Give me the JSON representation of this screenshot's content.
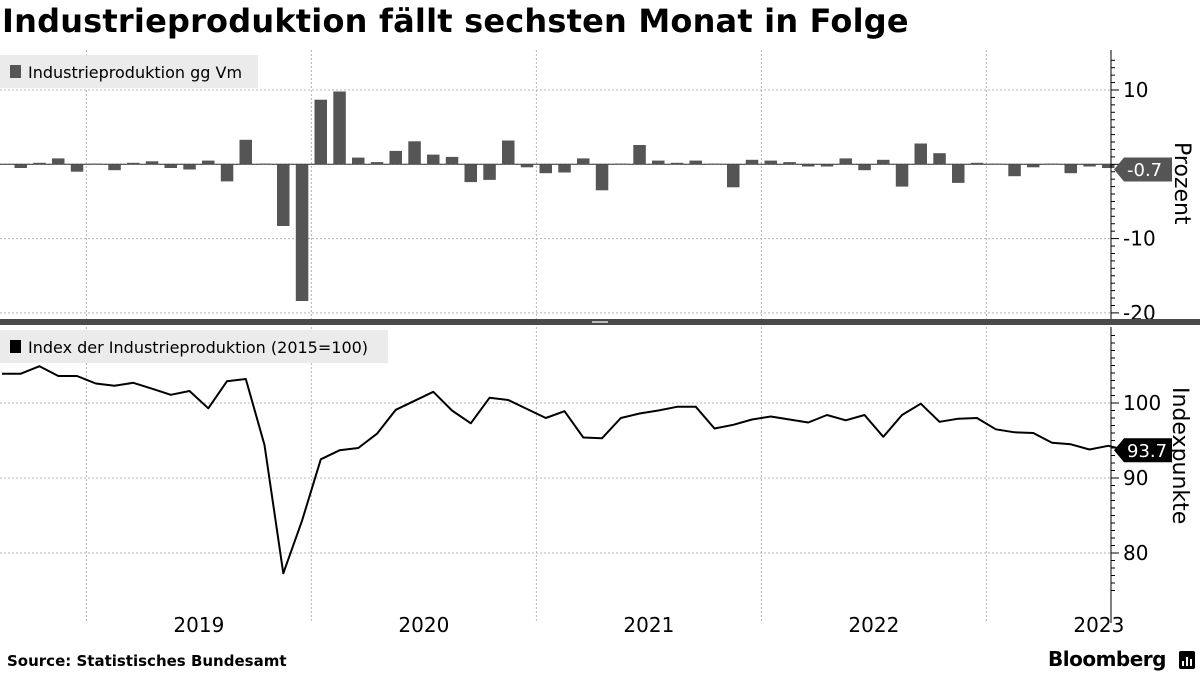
{
  "title": "Industrieproduktion fällt sechsten Monat in Folge",
  "source": "Source: Statistisches Bundesamt",
  "brand": "Bloomberg",
  "colors": {
    "bar": "#555555",
    "line": "#000000",
    "grid": "#b4b4b4",
    "legend_bg": "#ebebeb"
  },
  "chart_data": [
    {
      "type": "bar",
      "legend": "Industrieproduktion gg Vm",
      "ylabel": "Prozent",
      "yticks": [
        10,
        -10,
        -20
      ],
      "ylim": [
        -22,
        15
      ],
      "last_value_label": "-0.7",
      "x": [
        "2018-09",
        "2018-10",
        "2018-11",
        "2018-12",
        "2019-01",
        "2019-02",
        "2019-03",
        "2019-04",
        "2019-05",
        "2019-06",
        "2019-07",
        "2019-08",
        "2019-09",
        "2019-10",
        "2019-11",
        "2019-12",
        "2020-01",
        "2020-02",
        "2020-03",
        "2020-04",
        "2020-05",
        "2020-06",
        "2020-07",
        "2020-08",
        "2020-09",
        "2020-10",
        "2020-11",
        "2020-12",
        "2021-01",
        "2021-02",
        "2021-03",
        "2021-04",
        "2021-05",
        "2021-06",
        "2021-07",
        "2021-08",
        "2021-09",
        "2021-10",
        "2021-11",
        "2021-12",
        "2022-01",
        "2022-02",
        "2022-03",
        "2022-04",
        "2022-05",
        "2022-06",
        "2022-07",
        "2022-08",
        "2022-09",
        "2022-10",
        "2022-11",
        "2022-12",
        "2023-01",
        "2023-02",
        "2023-03",
        "2023-04",
        "2023-05",
        "2023-06",
        "2023-07",
        "2023-08"
      ],
      "values": [
        -0.5,
        0.2,
        0.8,
        -1.0,
        0.1,
        -0.8,
        0.2,
        0.4,
        -0.5,
        -0.7,
        0.5,
        -2.3,
        3.3,
        0.1,
        -8.3,
        -18.4,
        8.7,
        9.8,
        0.9,
        0.3,
        1.8,
        3.1,
        1.3,
        1.0,
        -2.4,
        -2.1,
        3.2,
        -0.4,
        -1.2,
        -1.1,
        0.8,
        -3.5,
        0.1,
        2.6,
        0.5,
        0.2,
        0.5,
        0.1,
        -3.1,
        0.6,
        0.5,
        0.3,
        -0.3,
        -0.3,
        0.8,
        -0.8,
        0.6,
        -3.0,
        2.8,
        1.5,
        -2.5,
        0.2,
        0.1,
        -1.6,
        -0.4,
        0.1,
        -1.2,
        -0.3,
        -0.5,
        -0.7
      ]
    },
    {
      "type": "line",
      "legend": "Index der Industrieproduktion (2015=100)",
      "ylabel": "Indexpunkte",
      "yticks": [
        100,
        90,
        80
      ],
      "ylim": [
        75,
        110
      ],
      "last_value_label": "93.7",
      "x": [
        "2018-08",
        "2018-09",
        "2018-10",
        "2018-11",
        "2018-12",
        "2019-01",
        "2019-02",
        "2019-03",
        "2019-04",
        "2019-05",
        "2019-06",
        "2019-07",
        "2019-08",
        "2019-09",
        "2019-10",
        "2019-11",
        "2019-12",
        "2020-01",
        "2020-02",
        "2020-03",
        "2020-04",
        "2020-05",
        "2020-06",
        "2020-07",
        "2020-08",
        "2020-09",
        "2020-10",
        "2020-11",
        "2020-12",
        "2021-01",
        "2021-02",
        "2021-03",
        "2021-04",
        "2021-05",
        "2021-06",
        "2021-07",
        "2021-08",
        "2021-09",
        "2021-10",
        "2021-11",
        "2021-12",
        "2022-01",
        "2022-02",
        "2022-03",
        "2022-04",
        "2022-05",
        "2022-06",
        "2022-07",
        "2022-08",
        "2022-09",
        "2022-10",
        "2022-11",
        "2022-12",
        "2023-01",
        "2023-02",
        "2023-03",
        "2023-04",
        "2023-05",
        "2023-06",
        "2023-07",
        "2023-08"
      ],
      "values": [
        103.9,
        103.9,
        104.9,
        103.6,
        103.6,
        102.6,
        102.3,
        102.7,
        101.9,
        101.1,
        101.6,
        99.3,
        102.9,
        103.2,
        94.4,
        77.3,
        84.3,
        92.5,
        93.7,
        94.0,
        95.9,
        99.1,
        100.3,
        101.5,
        99.0,
        97.3,
        100.7,
        100.4,
        99.2,
        98.0,
        98.9,
        95.4,
        95.3,
        98.0,
        98.6,
        99.0,
        99.5,
        99.5,
        96.6,
        97.1,
        97.8,
        98.2,
        97.8,
        97.4,
        98.4,
        97.7,
        98.4,
        95.5,
        98.4,
        99.9,
        97.5,
        97.9,
        98.0,
        96.5,
        96.1,
        96.0,
        94.7,
        94.5,
        93.8,
        94.3,
        93.7
      ]
    }
  ],
  "x_axis": {
    "years": [
      "2019",
      "2020",
      "2021",
      "2022",
      "2023"
    ]
  }
}
